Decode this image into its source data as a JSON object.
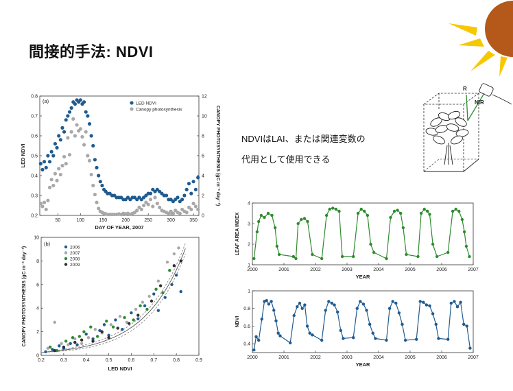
{
  "slide": {
    "title": "間接的手法: NDVI",
    "note_line1": "NDVIはLAI、または関連変数の",
    "note_line2": "代用として使用できる",
    "accent_color": "#b5591a",
    "sun_ray_color": "#f7c800"
  },
  "illustration": {
    "label_r": "R",
    "label_nir": "NIR"
  },
  "chart_data": [
    {
      "id": "a",
      "type": "scatter",
      "panel_label": "(a)",
      "xlabel": "DAY OF YEAR, 2007",
      "ylabel": "LED NDVI",
      "y2label": "CANOPY PHOTOSYNTHESIS (gC m⁻² day⁻¹)",
      "xlim": [
        10,
        362
      ],
      "ylim": [
        0.2,
        0.8
      ],
      "y2lim": [
        0,
        12
      ],
      "xticks": [
        50,
        100,
        150,
        200,
        250,
        300,
        350
      ],
      "yticks": [
        0.2,
        0.3,
        0.4,
        0.5,
        0.6,
        0.7,
        0.8
      ],
      "yticklabels": [
        "0.2",
        "0.3",
        "0.4",
        "0.5",
        "0.6",
        "0.7",
        "0.8"
      ],
      "y2ticks": [
        0,
        2,
        4,
        6,
        8,
        10,
        12
      ],
      "legend_position": "top-right",
      "series": [
        {
          "name": "LED NDVI",
          "color": "#1f5b8f",
          "axis": "left",
          "x": [
            12,
            16,
            20,
            24,
            28,
            32,
            36,
            40,
            44,
            48,
            52,
            56,
            60,
            64,
            68,
            72,
            76,
            80,
            84,
            88,
            92,
            96,
            100,
            104,
            108,
            112,
            116,
            120,
            124,
            128,
            132,
            136,
            140,
            144,
            148,
            152,
            156,
            160,
            165,
            170,
            175,
            180,
            185,
            190,
            195,
            200,
            205,
            210,
            215,
            220,
            225,
            230,
            235,
            240,
            245,
            250,
            255,
            260,
            265,
            270,
            275,
            280,
            285,
            290,
            295,
            300,
            305,
            310,
            315,
            320,
            325,
            330,
            335,
            340,
            345,
            350,
            355,
            360
          ],
          "y": [
            0.46,
            0.43,
            0.47,
            0.44,
            0.5,
            0.47,
            0.52,
            0.5,
            0.56,
            0.54,
            0.6,
            0.58,
            0.64,
            0.62,
            0.68,
            0.7,
            0.72,
            0.74,
            0.77,
            0.76,
            0.78,
            0.77,
            0.78,
            0.76,
            0.77,
            0.72,
            0.7,
            0.66,
            0.6,
            0.55,
            0.48,
            0.44,
            0.4,
            0.37,
            0.35,
            0.33,
            0.32,
            0.31,
            0.31,
            0.3,
            0.3,
            0.29,
            0.29,
            0.29,
            0.28,
            0.28,
            0.29,
            0.28,
            0.29,
            0.29,
            0.28,
            0.29,
            0.28,
            0.29,
            0.3,
            0.31,
            0.31,
            0.33,
            0.32,
            0.33,
            0.32,
            0.31,
            0.3,
            0.3,
            0.28,
            0.28,
            0.27,
            0.28,
            0.29,
            0.27,
            0.28,
            0.3,
            0.33,
            0.36,
            0.31,
            0.37,
            0.33,
            0.39
          ]
        },
        {
          "name": "Canopy photosynthesis",
          "color": "#a8a8a8",
          "axis": "right",
          "x": [
            12,
            16,
            20,
            24,
            28,
            32,
            36,
            40,
            44,
            48,
            52,
            56,
            60,
            64,
            68,
            72,
            76,
            80,
            84,
            88,
            92,
            96,
            100,
            104,
            108,
            112,
            116,
            120,
            124,
            128,
            132,
            136,
            140,
            144,
            148,
            152,
            156,
            160,
            165,
            170,
            175,
            180,
            185,
            190,
            195,
            200,
            205,
            210,
            215,
            220,
            225,
            230,
            235,
            240,
            245,
            250,
            255,
            260,
            265,
            270,
            275,
            280,
            285,
            290,
            295,
            300,
            305,
            310,
            315,
            320,
            325,
            330,
            335,
            340,
            345,
            350,
            355,
            360
          ],
          "y": [
            1.2,
            0.9,
            1.3,
            0.6,
            1.5,
            2.8,
            3.6,
            3.0,
            4.2,
            3.5,
            4.7,
            4.1,
            5.0,
            5.9,
            5.2,
            7.8,
            6.1,
            8.4,
            9.7,
            8.0,
            9.1,
            8.5,
            8.7,
            7.9,
            7.1,
            8.4,
            6.0,
            5.5,
            4.1,
            3.0,
            2.1,
            1.3,
            0.7,
            0.4,
            0.3,
            0.2,
            0.15,
            0.1,
            0.1,
            0.1,
            0.1,
            0.1,
            0.15,
            0.1,
            0.2,
            0.15,
            0.2,
            0.1,
            0.2,
            0.3,
            0.5,
            0.8,
            0.6,
            1.0,
            1.3,
            1.1,
            1.6,
            0.9,
            1.8,
            1.2,
            0.8,
            0.5,
            0.4,
            0.3,
            0.2,
            0.4,
            0.2,
            0.5,
            0.3,
            0.2,
            0.6,
            0.4,
            0.3,
            0.8,
            0.6,
            1.2,
            0.9,
            0.6
          ]
        }
      ]
    },
    {
      "id": "b",
      "type": "scatter",
      "panel_label": "(b)",
      "xlabel": "LED NDVI",
      "ylabel": "CANOPY PHOTOSYNTHESIS (gC m⁻² day⁻¹)",
      "xlim": [
        0.2,
        0.9
      ],
      "ylim": [
        0,
        10
      ],
      "xticks": [
        0.2,
        0.3,
        0.4,
        0.5,
        0.6,
        0.7,
        0.8,
        0.9
      ],
      "xticklabels": [
        "0.2",
        "0.3",
        "0.4",
        "0.5",
        "0.6",
        "0.7",
        "0.8",
        "0.9"
      ],
      "yticks": [
        0,
        2,
        4,
        6,
        8,
        10
      ],
      "legend_position": "top-left",
      "fit_curve": {
        "a": 0.082,
        "b": 5.6,
        "band": 0.35
      },
      "series": [
        {
          "name": "2006",
          "color": "#1f5b8f",
          "x": [
            0.22,
            0.25,
            0.28,
            0.3,
            0.33,
            0.36,
            0.4,
            0.43,
            0.46,
            0.48,
            0.5,
            0.53,
            0.56,
            0.6,
            0.63,
            0.66,
            0.7,
            0.72,
            0.75,
            0.78,
            0.8,
            0.82
          ],
          "y": [
            0.3,
            0.5,
            0.8,
            0.6,
            1.0,
            0.9,
            1.8,
            1.4,
            2.1,
            2.6,
            1.7,
            3.0,
            2.2,
            3.6,
            3.1,
            4.2,
            5.2,
            3.8,
            4.9,
            6.0,
            6.8,
            5.4
          ]
        },
        {
          "name": "2007",
          "color": "#a8a8a8",
          "x": [
            0.23,
            0.26,
            0.29,
            0.32,
            0.35,
            0.38,
            0.41,
            0.44,
            0.47,
            0.51,
            0.55,
            0.58,
            0.62,
            0.65,
            0.68,
            0.72,
            0.76,
            0.79,
            0.81
          ],
          "y": [
            0.6,
            2.8,
            1.0,
            0.9,
            1.4,
            1.0,
            1.5,
            2.2,
            1.9,
            2.6,
            3.3,
            2.8,
            3.9,
            4.5,
            5.0,
            6.3,
            7.9,
            8.6,
            9.1
          ]
        },
        {
          "name": "2008",
          "color": "#2e8b2e",
          "x": [
            0.24,
            0.27,
            0.31,
            0.34,
            0.37,
            0.39,
            0.42,
            0.45,
            0.49,
            0.52,
            0.57,
            0.61,
            0.64,
            0.67,
            0.71,
            0.74,
            0.77
          ],
          "y": [
            0.7,
            0.4,
            1.2,
            1.5,
            1.6,
            2.0,
            2.4,
            1.6,
            2.9,
            2.4,
            3.2,
            3.0,
            4.2,
            3.9,
            5.6,
            5.3,
            7.2
          ]
        },
        {
          "name": "2009",
          "color": "#2f2f2f",
          "x": [
            0.26,
            0.3,
            0.35,
            0.38,
            0.43,
            0.47,
            0.5,
            0.54,
            0.59,
            0.63,
            0.69,
            0.73,
            0.79,
            0.82
          ],
          "y": [
            0.4,
            0.7,
            1.1,
            1.3,
            1.2,
            2.0,
            1.5,
            2.3,
            2.7,
            3.4,
            4.6,
            5.9,
            7.6,
            8.0
          ]
        }
      ]
    },
    {
      "id": "lai",
      "type": "line",
      "xlabel": "YEAR",
      "ylabel": "LEAF AREA INDEX",
      "color": "#2e8b2e",
      "xlim": [
        2000,
        2007
      ],
      "ylim": [
        1,
        4
      ],
      "xticks": [
        2000,
        2001,
        2002,
        2003,
        2004,
        2005,
        2006,
        2007
      ],
      "yticks": [
        1,
        2,
        3,
        4
      ],
      "x": [
        2000.05,
        2000.15,
        2000.2,
        2000.28,
        2000.38,
        2000.5,
        2000.62,
        2000.72,
        2000.78,
        2000.85,
        2001.3,
        2001.38,
        2001.45,
        2001.55,
        2001.65,
        2001.75,
        2001.9,
        2002.2,
        2002.35,
        2002.45,
        2002.55,
        2002.65,
        2002.75,
        2002.85,
        2003.2,
        2003.35,
        2003.45,
        2003.55,
        2003.65,
        2003.75,
        2003.85,
        2004.25,
        2004.38,
        2004.5,
        2004.6,
        2004.7,
        2004.78,
        2004.88,
        2005.25,
        2005.35,
        2005.45,
        2005.55,
        2005.62,
        2005.72,
        2005.85,
        2006.2,
        2006.35,
        2006.45,
        2006.55,
        2006.65,
        2006.72,
        2006.78,
        2006.88
      ],
      "y": [
        1.3,
        2.6,
        3.1,
        3.4,
        3.3,
        3.5,
        3.4,
        2.8,
        1.9,
        1.5,
        1.4,
        1.3,
        3.0,
        3.2,
        3.25,
        3.1,
        1.5,
        1.3,
        3.4,
        3.7,
        3.75,
        3.7,
        3.6,
        1.4,
        1.4,
        3.5,
        3.7,
        3.6,
        3.4,
        2.0,
        1.6,
        1.3,
        3.3,
        3.6,
        3.65,
        3.5,
        2.8,
        1.5,
        1.4,
        3.5,
        3.7,
        3.6,
        3.45,
        2.0,
        1.4,
        1.6,
        3.6,
        3.7,
        3.6,
        3.2,
        2.6,
        1.9,
        1.4
      ]
    },
    {
      "id": "ndvi",
      "type": "line",
      "xlabel": "YEAR",
      "ylabel": "NDVI",
      "color": "#1f5b8f",
      "xlim": [
        2000,
        2007
      ],
      "ylim": [
        0.3,
        1.0
      ],
      "xticks": [
        2000,
        2001,
        2002,
        2003,
        2004,
        2005,
        2006,
        2007
      ],
      "yticks": [
        0.4,
        0.6,
        0.8,
        1.0
      ],
      "yticklabels": [
        "0.4",
        "0.6",
        "0.8",
        "1"
      ],
      "x": [
        2000.05,
        2000.12,
        2000.2,
        2000.3,
        2000.38,
        2000.45,
        2000.52,
        2000.6,
        2000.68,
        2000.75,
        2000.82,
        2000.88,
        2001.2,
        2001.32,
        2001.42,
        2001.5,
        2001.58,
        2001.66,
        2001.74,
        2001.82,
        2001.9,
        2002.2,
        2002.32,
        2002.42,
        2002.52,
        2002.6,
        2002.7,
        2002.8,
        2002.88,
        2003.2,
        2003.32,
        2003.42,
        2003.52,
        2003.62,
        2003.72,
        2003.82,
        2003.9,
        2004.25,
        2004.35,
        2004.45,
        2004.55,
        2004.65,
        2004.75,
        2004.85,
        2005.2,
        2005.32,
        2005.42,
        2005.52,
        2005.62,
        2005.72,
        2005.82,
        2005.9,
        2006.2,
        2006.3,
        2006.4,
        2006.5,
        2006.6,
        2006.7,
        2006.8,
        2006.9
      ],
      "y": [
        0.33,
        0.48,
        0.44,
        0.68,
        0.88,
        0.89,
        0.85,
        0.88,
        0.78,
        0.66,
        0.52,
        0.49,
        0.41,
        0.72,
        0.82,
        0.86,
        0.8,
        0.84,
        0.6,
        0.52,
        0.5,
        0.44,
        0.78,
        0.88,
        0.86,
        0.84,
        0.76,
        0.55,
        0.46,
        0.47,
        0.8,
        0.88,
        0.85,
        0.78,
        0.62,
        0.52,
        0.46,
        0.44,
        0.8,
        0.88,
        0.86,
        0.75,
        0.62,
        0.44,
        0.45,
        0.88,
        0.87,
        0.84,
        0.83,
        0.74,
        0.62,
        0.46,
        0.45,
        0.86,
        0.88,
        0.82,
        0.87,
        0.62,
        0.6,
        0.35
      ]
    }
  ]
}
